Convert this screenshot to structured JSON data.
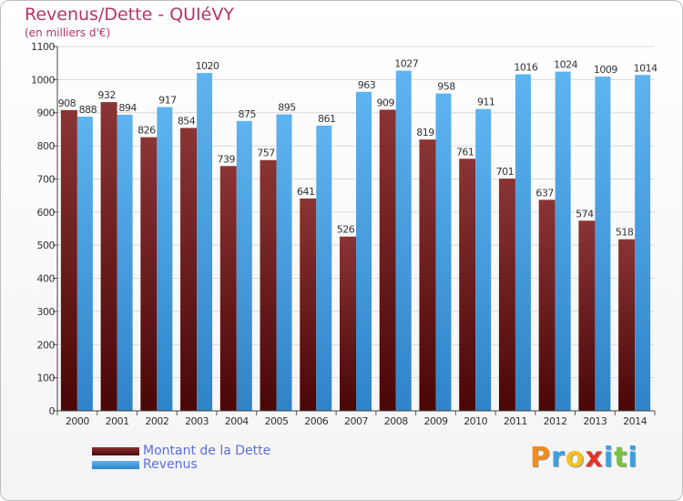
{
  "chart_data": {
    "type": "bar",
    "title": "Revenus/Dette - QUIéVY",
    "subtitle": "(en milliers d'€)",
    "categories": [
      "2000",
      "2001",
      "2002",
      "2003",
      "2004",
      "2005",
      "2006",
      "2007",
      "2008",
      "2009",
      "2010",
      "2011",
      "2012",
      "2013",
      "2014"
    ],
    "series": [
      {
        "name": "Montant de la Dette",
        "color": "#7a1c1c",
        "values": [
          908,
          932,
          826,
          854,
          739,
          757,
          641,
          526,
          909,
          819,
          761,
          701,
          637,
          574,
          518
        ]
      },
      {
        "name": "Revenus",
        "color": "#3f9be0",
        "values": [
          888,
          894,
          917,
          1020,
          875,
          895,
          861,
          963,
          1027,
          958,
          911,
          1016,
          1024,
          1009,
          1014
        ]
      }
    ],
    "ylim": [
      0,
      1100
    ],
    "yticks": [
      0,
      100,
      200,
      300,
      400,
      500,
      600,
      700,
      800,
      900,
      1000,
      1100
    ],
    "grid": true,
    "legend": "bottom-left"
  },
  "logo": {
    "letters": [
      "P",
      "r",
      "o",
      "x",
      "i",
      "t",
      "i"
    ],
    "colors": [
      "#f28c1e",
      "#3aa0e0",
      "#f2c21e",
      "#e0342a",
      "#3aa0e0",
      "#7cc242",
      "#3aa0e0"
    ]
  }
}
